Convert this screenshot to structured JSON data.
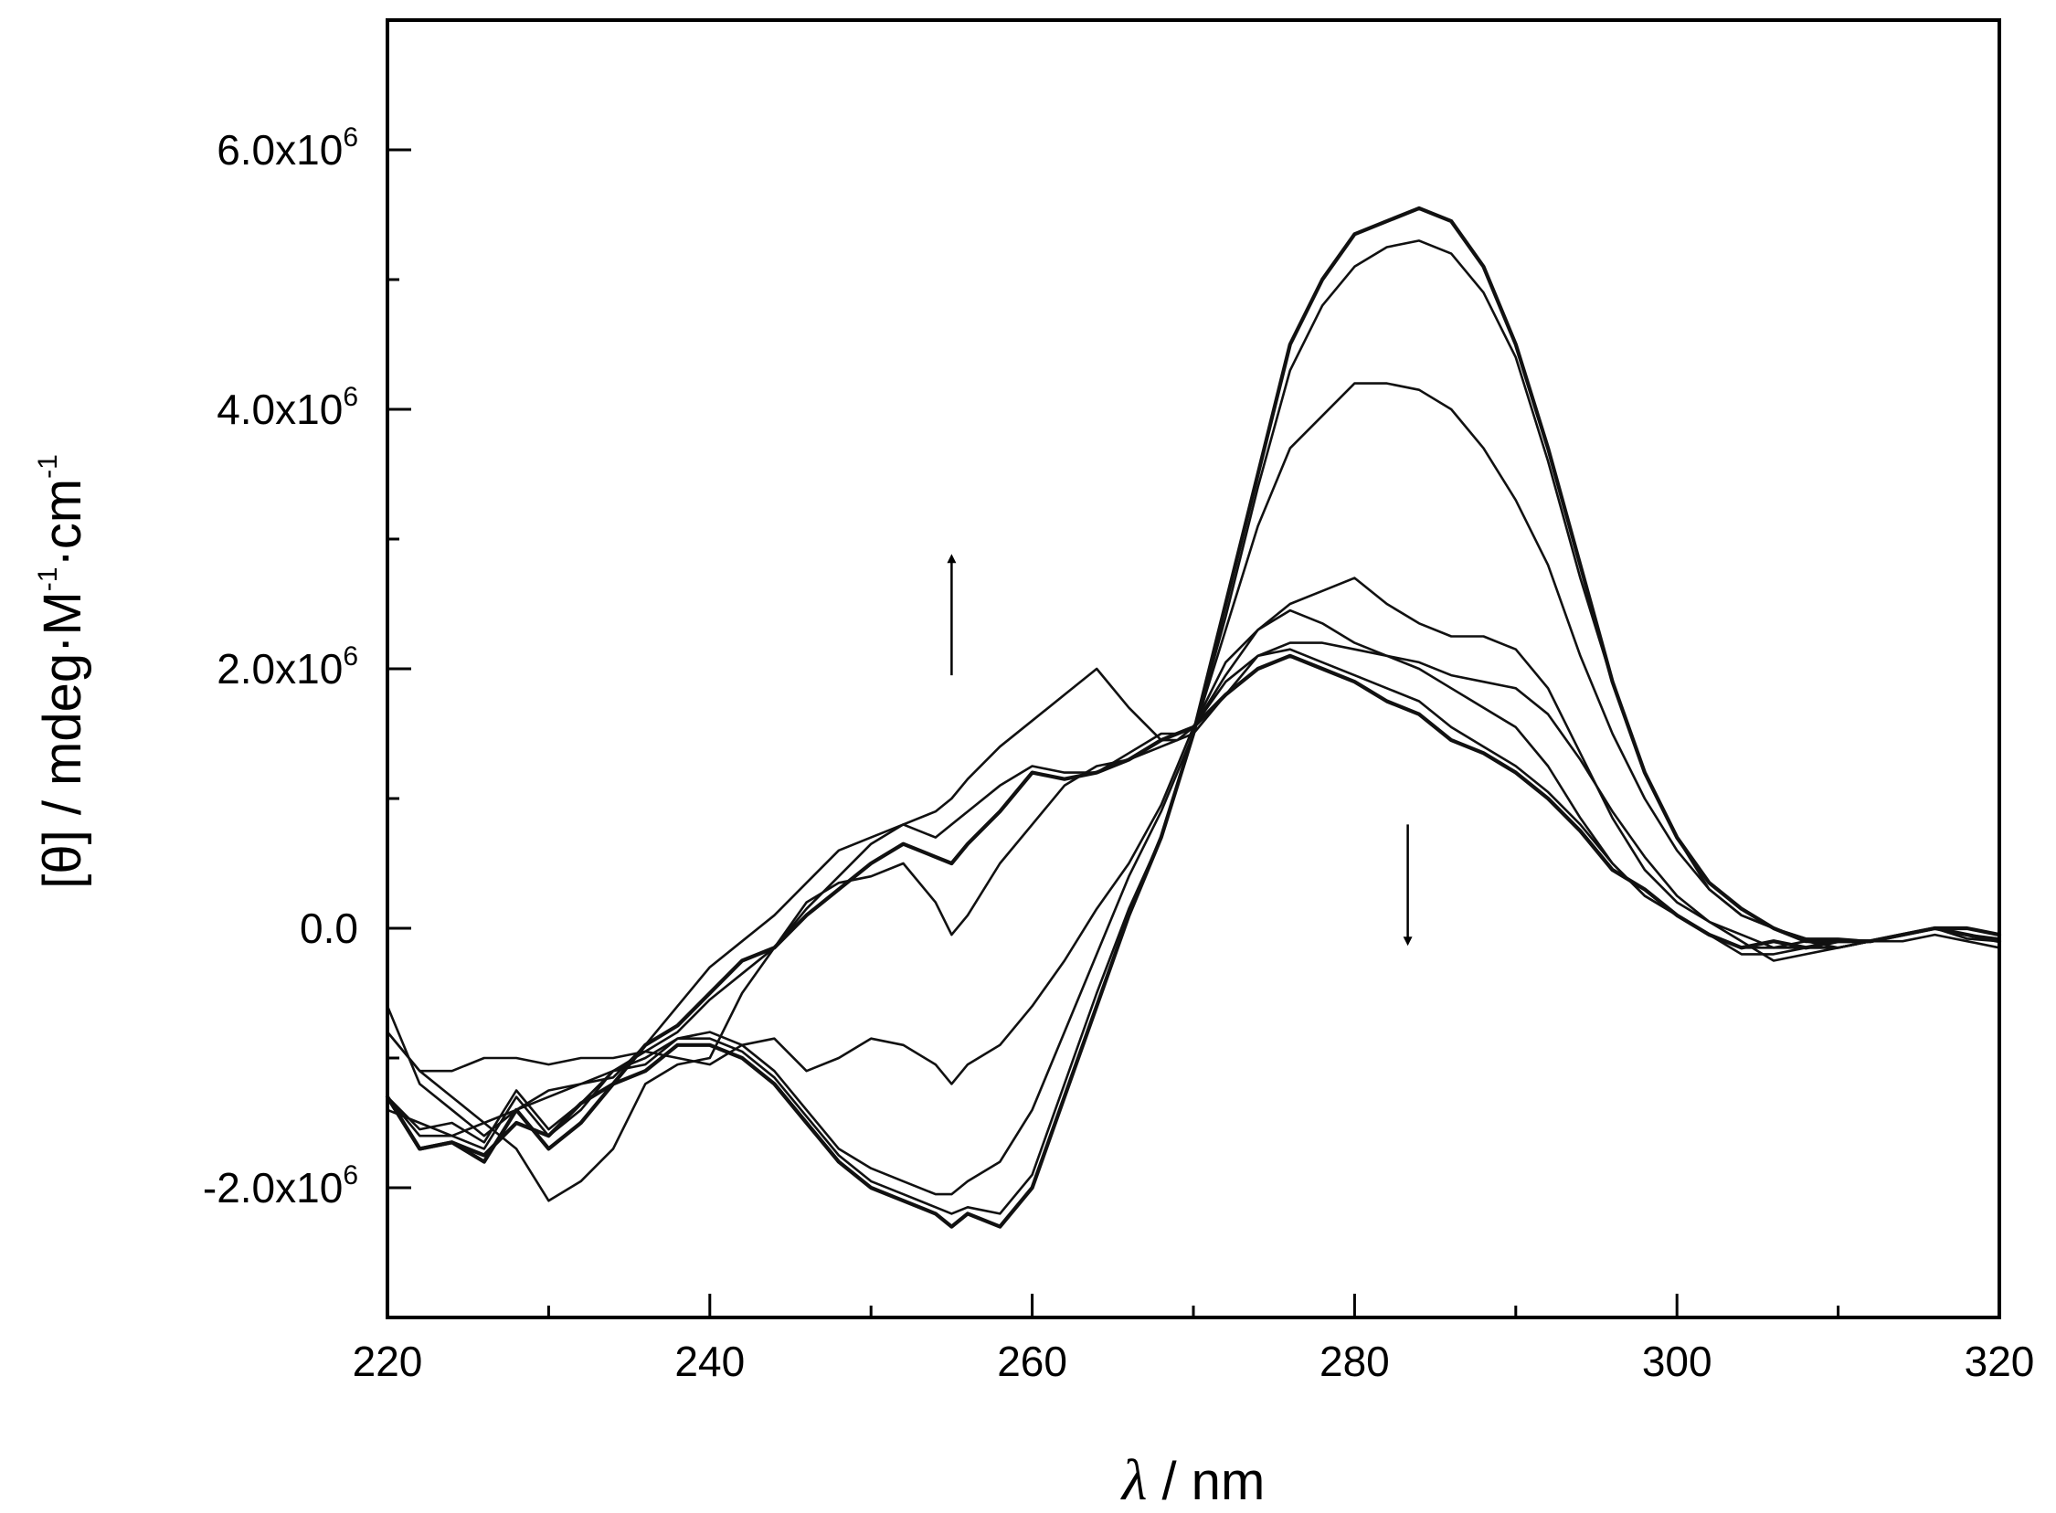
{
  "chart_data": {
    "type": "line",
    "xlabel_symbol": "λ",
    "xlabel_unit": "/ nm",
    "ylabel_parts": [
      "[θ] / mdeg·M",
      "-1",
      "·cm",
      "-1"
    ],
    "xlim": [
      220,
      320
    ],
    "ylim": [
      -3000000,
      7000000
    ],
    "x_ticks": [
      220,
      240,
      260,
      280,
      300,
      320
    ],
    "x_minor_ticks": [
      230,
      250,
      270,
      290,
      310
    ],
    "y_ticks": [
      {
        "value": -2000000,
        "mantissa": "-2.0x10",
        "exp": "6"
      },
      {
        "value": 0,
        "mantissa": "0.0",
        "exp": ""
      },
      {
        "value": 2000000,
        "mantissa": "2.0x10",
        "exp": "6"
      },
      {
        "value": 4000000,
        "mantissa": "4.0x10",
        "exp": "6"
      },
      {
        "value": 6000000,
        "mantissa": "6.0x10",
        "exp": "6"
      }
    ],
    "y_minor_ticks": [
      -1000000,
      1000000,
      3000000,
      5000000
    ],
    "x": [
      220,
      222,
      224,
      226,
      228,
      230,
      232,
      234,
      236,
      238,
      240,
      242,
      244,
      246,
      248,
      250,
      252,
      254,
      255,
      256,
      258,
      260,
      262,
      264,
      266,
      268,
      269,
      270,
      272,
      274,
      276,
      278,
      280,
      282,
      284,
      286,
      288,
      290,
      292,
      294,
      296,
      298,
      300,
      302,
      304,
      306,
      308,
      310,
      312,
      314,
      316,
      318,
      320
    ],
    "series": [
      {
        "name": "curve-1",
        "width": 4.2,
        "values": [
          -1300000,
          -1700000,
          -1650000,
          -1800000,
          -1400000,
          -1700000,
          -1500000,
          -1200000,
          -1100000,
          -900000,
          -900000,
          -1000000,
          -1200000,
          -1500000,
          -1800000,
          -2000000,
          -2100000,
          -2200000,
          -2300000,
          -2200000,
          -2300000,
          -2000000,
          -1300000,
          -600000,
          100000,
          700000,
          1100000,
          1500000,
          2500000,
          3500000,
          4500000,
          5000000,
          5350000,
          5450000,
          5550000,
          5450000,
          5100000,
          4500000,
          3700000,
          2800000,
          1900000,
          1200000,
          700000,
          350000,
          150000,
          0,
          -100000,
          -100000,
          -100000,
          -50000,
          0,
          -50000,
          -100000
        ]
      },
      {
        "name": "curve-2",
        "width": 2.6,
        "values": [
          -1300000,
          -1600000,
          -1600000,
          -1700000,
          -1300000,
          -1600000,
          -1400000,
          -1100000,
          -1050000,
          -850000,
          -850000,
          -950000,
          -1150000,
          -1450000,
          -1750000,
          -1950000,
          -2050000,
          -2150000,
          -2200000,
          -2150000,
          -2200000,
          -1900000,
          -1200000,
          -500000,
          150000,
          700000,
          1100000,
          1500000,
          2400000,
          3400000,
          4300000,
          4800000,
          5100000,
          5250000,
          5300000,
          5200000,
          4900000,
          4400000,
          3600000,
          2700000,
          1900000,
          1200000,
          700000,
          300000,
          100000,
          0,
          -80000,
          -80000,
          -100000,
          -50000,
          0,
          -50000,
          -80000
        ]
      },
      {
        "name": "curve-3",
        "width": 2.6,
        "values": [
          -1300000,
          -1550000,
          -1500000,
          -1650000,
          -1250000,
          -1550000,
          -1350000,
          -1100000,
          -1000000,
          -850000,
          -800000,
          -900000,
          -1100000,
          -1400000,
          -1700000,
          -1850000,
          -1950000,
          -2050000,
          -2050000,
          -1950000,
          -1800000,
          -1400000,
          -800000,
          -200000,
          400000,
          900000,
          1200000,
          1500000,
          2300000,
          3100000,
          3700000,
          3950000,
          4200000,
          4200000,
          4150000,
          4000000,
          3700000,
          3300000,
          2800000,
          2100000,
          1500000,
          1000000,
          600000,
          300000,
          100000,
          0,
          -80000,
          -100000,
          -100000,
          -50000,
          0,
          -80000,
          -100000
        ]
      },
      {
        "name": "curve-4",
        "width": 2.6,
        "values": [
          -800000,
          -1100000,
          -1100000,
          -1000000,
          -1000000,
          -1050000,
          -1000000,
          -1000000,
          -950000,
          -1000000,
          -1050000,
          -900000,
          -850000,
          -1100000,
          -1000000,
          -850000,
          -900000,
          -1050000,
          -1200000,
          -1050000,
          -900000,
          -600000,
          -250000,
          150000,
          500000,
          950000,
          1250000,
          1550000,
          2050000,
          2300000,
          2500000,
          2600000,
          2700000,
          2500000,
          2350000,
          2250000,
          2250000,
          2150000,
          1850000,
          1350000,
          850000,
          450000,
          200000,
          50000,
          -50000,
          -150000,
          -150000,
          -150000,
          -100000,
          -50000,
          0,
          -50000,
          -100000
        ]
      },
      {
        "name": "curve-5",
        "width": 2.6,
        "values": [
          -800000,
          -1100000,
          -1300000,
          -1500000,
          -1700000,
          -2100000,
          -1950000,
          -1700000,
          -1200000,
          -1050000,
          -1000000,
          -500000,
          -150000,
          200000,
          350000,
          400000,
          500000,
          200000,
          -50000,
          100000,
          500000,
          800000,
          1100000,
          1250000,
          1300000,
          1400000,
          1450000,
          1500000,
          1800000,
          2100000,
          2200000,
          2200000,
          2150000,
          2100000,
          2050000,
          1950000,
          1900000,
          1850000,
          1650000,
          1300000,
          900000,
          550000,
          250000,
          50000,
          -100000,
          -250000,
          -200000,
          -150000,
          -100000,
          -100000,
          -50000,
          -100000,
          -150000
        ]
      },
      {
        "name": "curve-6",
        "width": 4.2,
        "values": [
          -1300000,
          -1700000,
          -1650000,
          -1750000,
          -1500000,
          -1600000,
          -1350000,
          -1200000,
          -900000,
          -750000,
          -500000,
          -250000,
          -150000,
          100000,
          300000,
          500000,
          650000,
          550000,
          500000,
          650000,
          900000,
          1200000,
          1150000,
          1200000,
          1300000,
          1450000,
          1500000,
          1550000,
          1800000,
          2000000,
          2100000,
          2000000,
          1900000,
          1750000,
          1650000,
          1450000,
          1350000,
          1200000,
          1000000,
          750000,
          450000,
          300000,
          100000,
          -50000,
          -150000,
          -100000,
          -150000,
          -100000,
          -100000,
          -50000,
          0,
          0,
          -50000
        ]
      },
      {
        "name": "curve-7",
        "width": 2.6,
        "values": [
          -600000,
          -1200000,
          -1400000,
          -1600000,
          -1400000,
          -1300000,
          -1200000,
          -1100000,
          -950000,
          -800000,
          -550000,
          -350000,
          -150000,
          150000,
          400000,
          650000,
          800000,
          700000,
          800000,
          900000,
          1100000,
          1250000,
          1200000,
          1200000,
          1350000,
          1500000,
          1500000,
          1550000,
          1900000,
          2100000,
          2150000,
          2050000,
          1950000,
          1850000,
          1750000,
          1550000,
          1400000,
          1250000,
          1050000,
          800000,
          500000,
          250000,
          100000,
          -50000,
          -150000,
          -150000,
          -100000,
          -150000,
          -100000,
          -50000,
          0,
          0,
          -50000
        ]
      },
      {
        "name": "curve-8",
        "width": 2.6,
        "values": [
          -1400000,
          -1500000,
          -1600000,
          -1500000,
          -1400000,
          -1250000,
          -1200000,
          -1150000,
          -900000,
          -600000,
          -300000,
          -100000,
          100000,
          350000,
          600000,
          700000,
          800000,
          900000,
          1000000,
          1150000,
          1400000,
          1600000,
          1800000,
          2000000,
          1700000,
          1450000,
          1450000,
          1550000,
          1950000,
          2300000,
          2450000,
          2350000,
          2200000,
          2100000,
          2000000,
          1850000,
          1700000,
          1550000,
          1250000,
          850000,
          500000,
          250000,
          100000,
          -50000,
          -200000,
          -200000,
          -150000,
          -150000,
          -100000,
          -50000,
          0,
          -50000,
          -100000
        ]
      }
    ],
    "annotations": [
      {
        "kind": "arrow-up",
        "x": 255.0,
        "y_from": 1950000,
        "y_to": 2850000
      },
      {
        "kind": "arrow-down",
        "x": 283.3,
        "y_from": 800000,
        "y_to": -100000
      }
    ],
    "grid": false,
    "legend": "none"
  }
}
